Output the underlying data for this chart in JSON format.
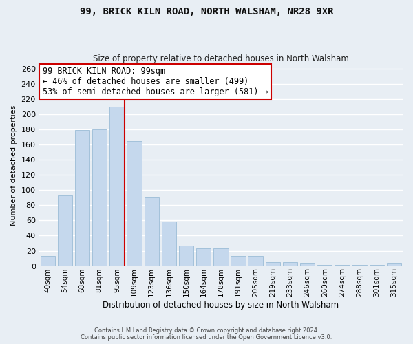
{
  "title": "99, BRICK KILN ROAD, NORTH WALSHAM, NR28 9XR",
  "subtitle": "Size of property relative to detached houses in North Walsham",
  "xlabel": "Distribution of detached houses by size in North Walsham",
  "ylabel": "Number of detached properties",
  "bar_color": "#c5d8ed",
  "bar_edge_color": "#9bbcd6",
  "bar_labels": [
    "40sqm",
    "54sqm",
    "68sqm",
    "81sqm",
    "95sqm",
    "109sqm",
    "123sqm",
    "136sqm",
    "150sqm",
    "164sqm",
    "178sqm",
    "191sqm",
    "205sqm",
    "219sqm",
    "233sqm",
    "246sqm",
    "260sqm",
    "274sqm",
    "288sqm",
    "301sqm",
    "315sqm"
  ],
  "bar_values": [
    13,
    93,
    179,
    180,
    210,
    165,
    90,
    59,
    27,
    23,
    23,
    13,
    13,
    5,
    5,
    4,
    1,
    1,
    1,
    1,
    4
  ],
  "highlighted_bar_index": 4,
  "vline_color": "#cc0000",
  "annotation_line1": "99 BRICK KILN ROAD: 99sqm",
  "annotation_line2": "← 46% of detached houses are smaller (499)",
  "annotation_line3": "53% of semi-detached houses are larger (581) →",
  "annotation_box_color": "white",
  "annotation_box_edge_color": "#cc0000",
  "ylim": [
    0,
    265
  ],
  "yticks": [
    0,
    20,
    40,
    60,
    80,
    100,
    120,
    140,
    160,
    180,
    200,
    220,
    240,
    260
  ],
  "footer1": "Contains HM Land Registry data © Crown copyright and database right 2024.",
  "footer2": "Contains public sector information licensed under the Open Government Licence v3.0.",
  "background_color": "#e8eef4",
  "grid_color": "white"
}
